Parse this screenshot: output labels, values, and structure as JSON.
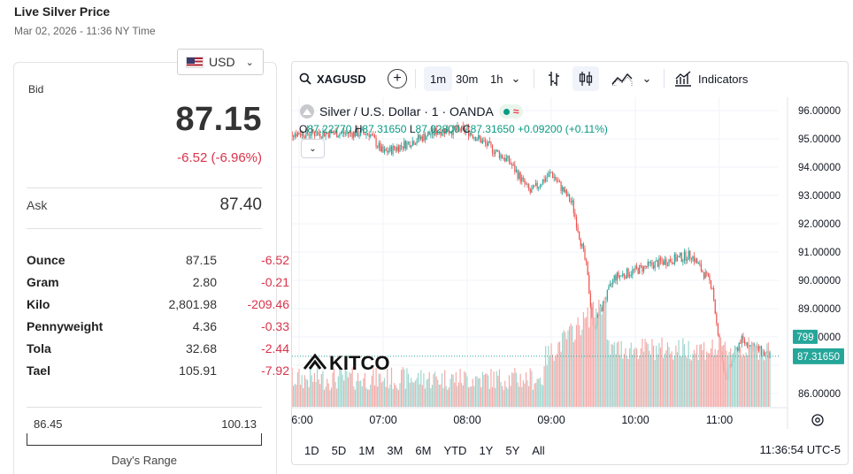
{
  "header": {
    "title": "Live Silver Price",
    "subtitle": "Mar 02, 2026 - 11:36 NY Time"
  },
  "currency": {
    "label": "USD"
  },
  "bid": {
    "label": "Bid",
    "value": "87.15",
    "change": "-6.52 (-6.96%)"
  },
  "ask": {
    "label": "Ask",
    "value": "87.40"
  },
  "units": [
    {
      "name": "Ounce",
      "price": "87.15",
      "change": "-6.52"
    },
    {
      "name": "Gram",
      "price": "2.80",
      "change": "-0.21"
    },
    {
      "name": "Kilo",
      "price": "2,801.98",
      "change": "-209.46"
    },
    {
      "name": "Pennyweight",
      "price": "4.36",
      "change": "-0.33"
    },
    {
      "name": "Tola",
      "price": "32.68",
      "change": "-2.44"
    },
    {
      "name": "Tael",
      "price": "105.91",
      "change": "-7.92"
    }
  ],
  "days_range": {
    "low": "86.45",
    "high": "100.13",
    "label": "Day's Range"
  },
  "chart": {
    "symbol": "XAGUSD",
    "intervals": [
      "1m",
      "30m",
      "1h"
    ],
    "active_interval": "1m",
    "indicators_label": "Indicators",
    "legend_title": "Silver / U.S. Dollar · 1 · OANDA",
    "ohlc": {
      "o_label": "O",
      "o": "87.22770",
      "h_label": "H",
      "h": "87.31650",
      "l_label": "L",
      "l": "87.02800",
      "c_label": "C",
      "c": "87.31650",
      "change": "+0.09200 (+0.11%)"
    },
    "watermark": "KITCO",
    "y_ticks": [
      "96.00000",
      "95.00000",
      "94.00000",
      "93.00000",
      "92.00000",
      "91.00000",
      "90.00000",
      "89.00000",
      "88.00000",
      "87.00000",
      "86.00000"
    ],
    "x_ticks": [
      "06:00",
      "07:00",
      "08:00",
      "09:00",
      "10:00",
      "11:00"
    ],
    "volume_badge": "799",
    "price_badge": "87.31650",
    "ranges": [
      "1D",
      "5D",
      "1M",
      "3M",
      "6M",
      "YTD",
      "1Y",
      "5Y",
      "All"
    ],
    "clock": "11:36:54 UTC-5",
    "colors": {
      "up": "#26a69a",
      "down": "#ef5350",
      "vol_up": "#9fd6cf",
      "vol_down": "#f4aaa8"
    }
  },
  "chart_data": {
    "type": "candlestick",
    "title": "Silver / U.S. Dollar · 1 · OANDA",
    "x_labels": [
      "06:00",
      "07:00",
      "08:00",
      "09:00",
      "10:00",
      "11:00"
    ],
    "ylim": [
      85.6,
      96.3
    ],
    "key_points": [
      {
        "time": "05:50",
        "price": 95.2
      },
      {
        "time": "06:50",
        "price": 95.2
      },
      {
        "time": "07:00",
        "price": 94.5
      },
      {
        "time": "07:40",
        "price": 95.3
      },
      {
        "time": "08:00",
        "price": 95.3
      },
      {
        "time": "08:30",
        "price": 94.2
      },
      {
        "time": "08:45",
        "price": 93.1
      },
      {
        "time": "09:00",
        "price": 93.8
      },
      {
        "time": "09:15",
        "price": 92.7
      },
      {
        "time": "09:25",
        "price": 90.5
      },
      {
        "time": "09:30",
        "price": 88.3
      },
      {
        "time": "09:45",
        "price": 90.1
      },
      {
        "time": "10:15",
        "price": 90.6
      },
      {
        "time": "10:40",
        "price": 90.9
      },
      {
        "time": "10:55",
        "price": 89.8
      },
      {
        "time": "11:00",
        "price": 87.5
      },
      {
        "time": "11:05",
        "price": 86.6
      },
      {
        "time": "11:15",
        "price": 87.9
      },
      {
        "time": "11:36",
        "price": 87.3
      }
    ]
  }
}
